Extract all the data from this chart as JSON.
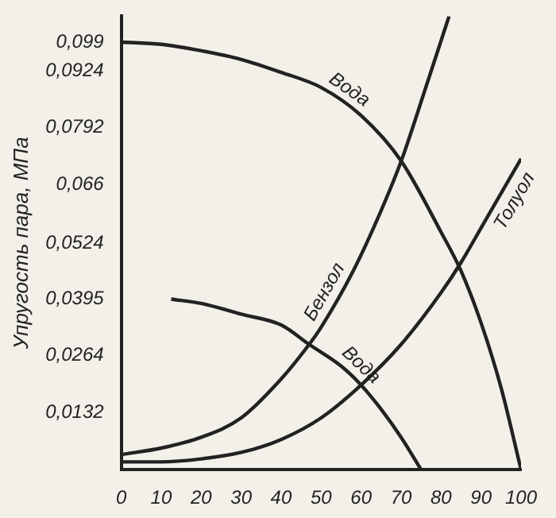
{
  "chart_data": {
    "type": "line",
    "ylabel": "Упругость пара, МПа",
    "xlim": [
      0,
      100
    ],
    "xticks": [
      0,
      10,
      20,
      30,
      40,
      50,
      60,
      70,
      80,
      90,
      100
    ],
    "ylim": [
      0,
      0.105
    ],
    "yticks": [
      {
        "value": 0.0132,
        "label": "0,0132"
      },
      {
        "value": 0.0264,
        "label": "0,0264"
      },
      {
        "value": 0.0395,
        "label": "0,0395"
      },
      {
        "value": 0.0524,
        "label": "0,0524"
      },
      {
        "value": 0.066,
        "label": "0,066"
      },
      {
        "value": 0.0792,
        "label": "0,0792"
      },
      {
        "value": 0.0924,
        "label": "0,0924"
      },
      {
        "value": 0.099,
        "label": "0,099"
      }
    ],
    "grid": false,
    "legend": false,
    "marker": "none",
    "line_style": "solid",
    "series": [
      {
        "name": "Вода",
        "color": "#222222",
        "x": [
          0,
          10,
          20,
          30,
          40,
          50,
          60,
          70,
          80,
          85,
          90,
          95,
          100
        ],
        "values": [
          0.099,
          0.0985,
          0.097,
          0.095,
          0.092,
          0.0885,
          0.082,
          0.0715,
          0.055,
          0.046,
          0.034,
          0.019,
          0
        ]
      },
      {
        "name": "Бензол",
        "color": "#222222",
        "x": [
          0,
          10,
          20,
          30,
          40,
          47,
          50,
          58,
          65,
          70,
          76,
          82
        ],
        "values": [
          0.0035,
          0.005,
          0.0075,
          0.012,
          0.021,
          0.029,
          0.033,
          0.046,
          0.06,
          0.0714,
          0.088,
          0.105
        ]
      },
      {
        "name": "Толуол",
        "color": "#222222",
        "x": [
          0,
          10,
          20,
          30,
          40,
          50,
          60,
          70,
          80,
          85,
          90,
          100
        ],
        "values": [
          0.0018,
          0.0018,
          0.0025,
          0.004,
          0.007,
          0.012,
          0.0196,
          0.029,
          0.041,
          0.048,
          0.056,
          0.072
        ]
      },
      {
        "name": "Вода",
        "color": "#222222",
        "x": [
          12.5,
          20,
          30,
          40,
          47,
          55,
          60,
          65,
          70,
          75
        ],
        "values": [
          0.0395,
          0.0385,
          0.036,
          0.0335,
          0.029,
          0.024,
          0.0196,
          0.014,
          0.0075,
          0
        ]
      }
    ]
  }
}
